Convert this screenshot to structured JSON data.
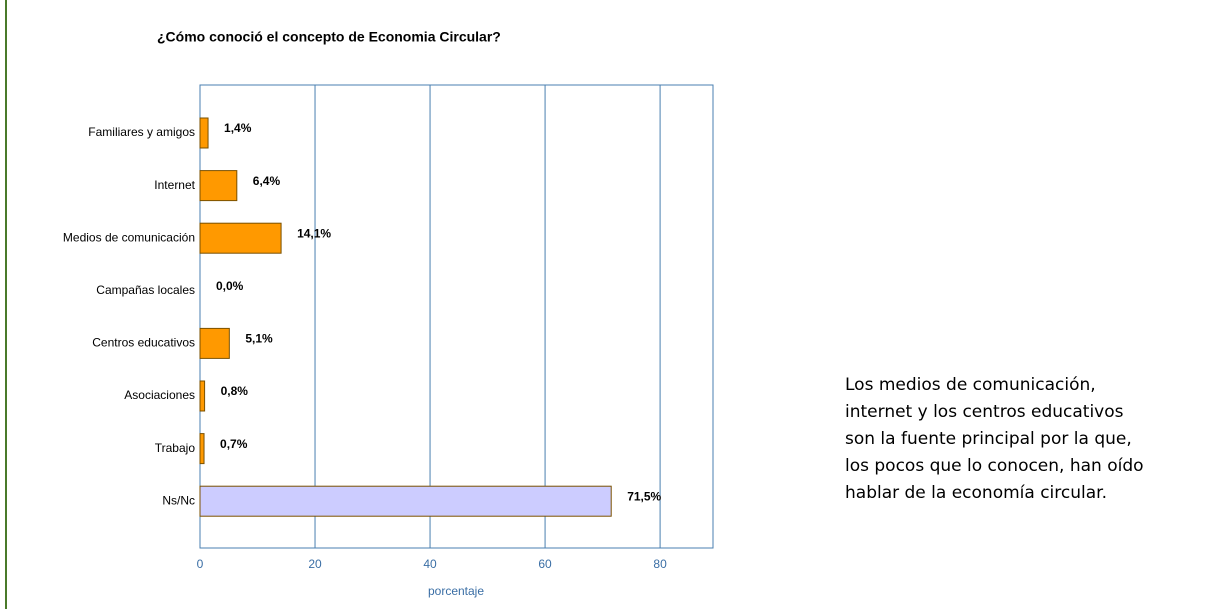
{
  "chart_data": {
    "type": "hbar",
    "title": "¿Cómo conoció el concepto de Economia Circular?",
    "categories": [
      "Familiares y amigos",
      "Internet",
      "Medios de comunicación",
      "Campañas locales",
      "Centros educativos",
      "Asociaciones",
      "Trabajo",
      "Ns/Nc"
    ],
    "values": [
      1.4,
      6.4,
      14.1,
      0.0,
      5.1,
      0.8,
      0.7,
      71.5
    ],
    "value_labels": [
      "1,4%",
      "6,4%",
      "14,1%",
      "0,0%",
      "5,1%",
      "0,8%",
      "0,7%",
      "71,5%"
    ],
    "colors": [
      "#ff9900",
      "#ff9900",
      "#ff9900",
      "#ff9900",
      "#ff9900",
      "#ff9900",
      "#ff9900",
      "#ccccff"
    ],
    "xlabel": "porcentaje",
    "xlim": [
      0,
      89.2
    ],
    "xticks": [
      0,
      20,
      40,
      60,
      80
    ],
    "grid": true
  },
  "note": [
    "Los medios de comunicación,",
    "internet y los centros educativos",
    "son la fuente principal por la que,",
    "los pocos que lo conocen, han oído",
    "hablar de la economía circular."
  ]
}
